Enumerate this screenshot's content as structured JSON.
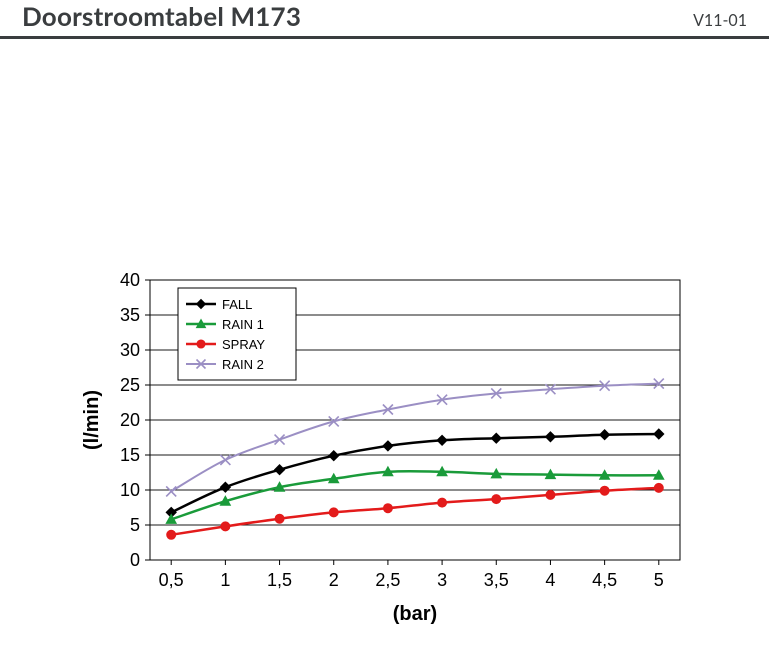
{
  "header": {
    "title": "Doorstroomtabel M173",
    "version": "V11-01",
    "title_color": "#3a3d3f",
    "rule_color": "#3a3d3f"
  },
  "chart": {
    "type": "line",
    "x_label": "(bar)",
    "y_label": "(l/min)",
    "label_fontweight": "bold",
    "label_fontsize": 20,
    "tick_fontsize": 18,
    "axis_color": "#000000",
    "grid_color": "#000000",
    "background_color": "#ffffff",
    "plot_background": "#ffffff",
    "legend_border": "#000000",
    "legend_bg": "#ffffff",
    "x_categories": [
      "0,5",
      "1",
      "1,5",
      "2",
      "2,5",
      "3",
      "3,5",
      "4",
      "4,5",
      "5"
    ],
    "y_min": 0,
    "y_max": 40,
    "y_step": 5,
    "series": [
      {
        "name": "FALL",
        "color": "#000000",
        "marker": "diamond",
        "marker_fill": "#000000",
        "line_width": 2.5,
        "smooth": true,
        "values": [
          6.8,
          10.4,
          12.9,
          14.9,
          16.3,
          17.1,
          17.4,
          17.6,
          17.9,
          18.0
        ]
      },
      {
        "name": "RAIN 1",
        "color": "#1a9b3a",
        "marker": "triangle",
        "marker_fill": "#1a9b3a",
        "line_width": 2.5,
        "smooth": true,
        "values": [
          5.8,
          8.4,
          10.4,
          11.6,
          12.6,
          12.6,
          12.3,
          12.2,
          12.1,
          12.1
        ]
      },
      {
        "name": "SPRAY",
        "color": "#e31b1b",
        "marker": "circle",
        "marker_fill": "#e31b1b",
        "line_width": 2.5,
        "smooth": true,
        "values": [
          3.6,
          4.8,
          5.9,
          6.8,
          7.4,
          8.2,
          8.7,
          9.3,
          9.9,
          10.3
        ]
      },
      {
        "name": "RAIN 2",
        "color": "#9b8fc4",
        "marker": "x",
        "marker_fill": "#9b8fc4",
        "line_width": 2,
        "smooth": true,
        "values": [
          9.8,
          14.3,
          17.2,
          19.8,
          21.5,
          22.9,
          23.8,
          24.4,
          24.9,
          25.2
        ]
      }
    ]
  }
}
